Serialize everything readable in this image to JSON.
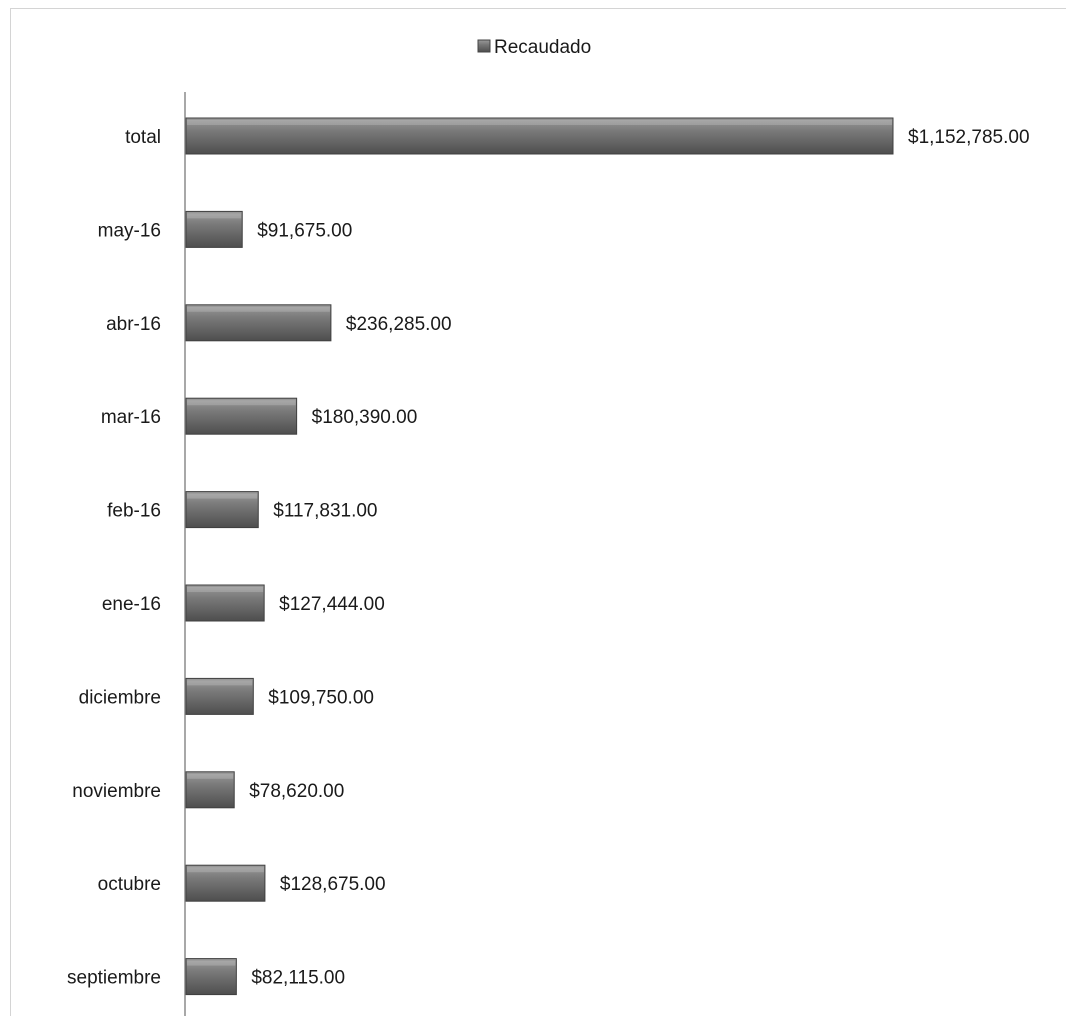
{
  "chart_data": {
    "type": "bar",
    "orientation": "horizontal",
    "categories": [
      "total",
      "may-16",
      "abr-16",
      "mar-16",
      "feb-16",
      "ene-16",
      "diciembre",
      "noviembre",
      "octubre",
      "septiembre"
    ],
    "series": [
      {
        "name": "Recaudado",
        "values": [
          1152785.0,
          91675.0,
          236285.0,
          180390.0,
          117831.0,
          127444.0,
          109750.0,
          78620.0,
          128675.0,
          82115.0
        ],
        "labels": [
          "$1,152,785.00",
          "$91,675.00",
          "$236,285.00",
          "$180,390.00",
          "$117,831.00",
          "$127,444.00",
          "$109,750.00",
          "$78,620.00",
          "$128,675.00",
          "$82,115.00"
        ]
      }
    ],
    "legend_position": "top",
    "grid": false,
    "colors": {
      "bar": "#6e6e6e",
      "bar_edge": "#3f3f3f",
      "axis": "#8c8c8c"
    }
  }
}
